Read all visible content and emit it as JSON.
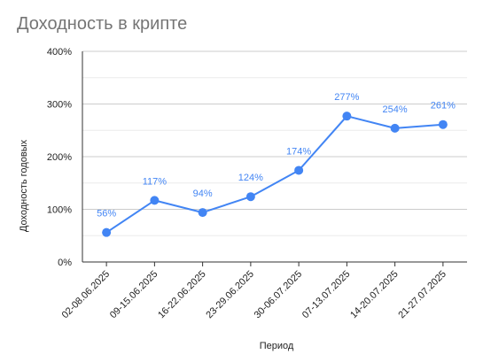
{
  "chart_data": {
    "type": "line",
    "title": "Доходность в крипте",
    "xlabel": "Период",
    "ylabel": "Доходность годовых",
    "categories": [
      "02-08.06.2025",
      "09-15.06.2025",
      "16-22.06.2025",
      "23-29.06.2025",
      "30-06.07.2025",
      "07-13.07.2025",
      "14-20.07.2025",
      "21-27.07.2025"
    ],
    "series": [
      {
        "values": [
          56,
          117,
          94,
          124,
          174,
          277,
          254,
          261
        ],
        "color": "#4285f4"
      }
    ],
    "data_labels": [
      "56%",
      "117%",
      "94%",
      "124%",
      "174%",
      "277%",
      "254%",
      "261%"
    ],
    "yticks": [
      "0%",
      "100%",
      "200%",
      "300%",
      "400%"
    ],
    "ylim": [
      0,
      400
    ],
    "grid": true,
    "legend": "none"
  }
}
